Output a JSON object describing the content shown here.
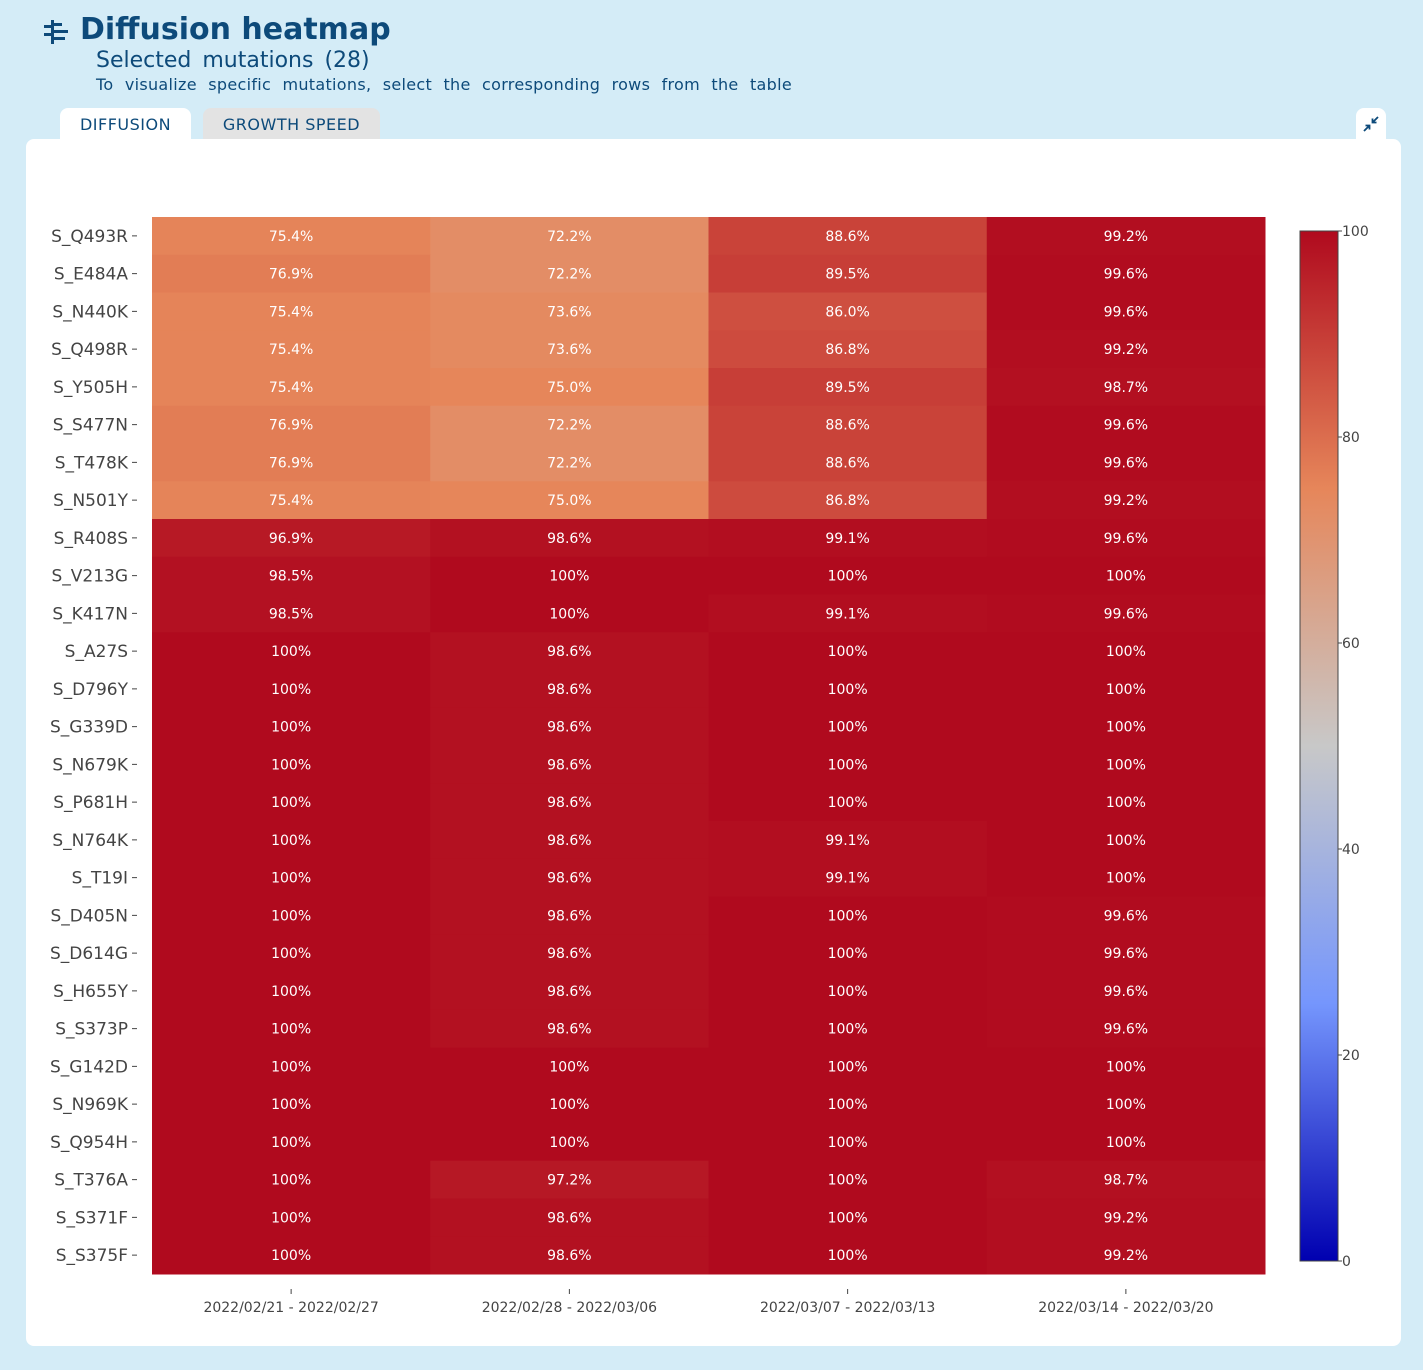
{
  "header": {
    "icon": "tree-filter-icon",
    "title": "Diffusion heatmap",
    "subtitle": "Selected mutations (28)",
    "hint": "To visualize specific mutations, select the corresponding rows from the table"
  },
  "tabs": [
    {
      "label": "DIFFUSION",
      "active": true
    },
    {
      "label": "GROWTH SPEED",
      "active": false
    }
  ],
  "collapse_icon": "collapse-icon",
  "colors": {
    "background": "#d4ecf7",
    "accent": "#0d4a7a",
    "colorscale": [
      "#0000b0",
      "#7596fd",
      "#c8c8c8",
      "#e6865a",
      "#b00a1e"
    ]
  },
  "chart_data": {
    "type": "heatmap",
    "x": [
      "2022/02/21 - 2022/02/27",
      "2022/02/28 - 2022/03/06",
      "2022/03/07 - 2022/03/13",
      "2022/03/14 - 2022/03/20"
    ],
    "y": [
      "S_Q493R",
      "S_E484A",
      "S_N440K",
      "S_Q498R",
      "S_Y505H",
      "S_S477N",
      "S_T478K",
      "S_N501Y",
      "S_R408S",
      "S_V213G",
      "S_K417N",
      "S_A27S",
      "S_D796Y",
      "S_G339D",
      "S_N679K",
      "S_P681H",
      "S_N764K",
      "S_T19I",
      "S_D405N",
      "S_D614G",
      "S_H655Y",
      "S_S373P",
      "S_G142D",
      "S_N969K",
      "S_Q954H",
      "S_T376A",
      "S_S371F",
      "S_S375F"
    ],
    "z": [
      [
        75.4,
        72.2,
        88.6,
        99.2
      ],
      [
        76.9,
        72.2,
        89.5,
        99.6
      ],
      [
        75.4,
        73.6,
        86.0,
        99.6
      ],
      [
        75.4,
        73.6,
        86.8,
        99.2
      ],
      [
        75.4,
        75.0,
        89.5,
        98.7
      ],
      [
        76.9,
        72.2,
        88.6,
        99.6
      ],
      [
        76.9,
        72.2,
        88.6,
        99.6
      ],
      [
        75.4,
        75.0,
        86.8,
        99.2
      ],
      [
        96.9,
        98.6,
        99.1,
        99.6
      ],
      [
        98.5,
        100,
        100,
        100
      ],
      [
        98.5,
        100,
        99.1,
        99.6
      ],
      [
        100,
        98.6,
        100,
        100
      ],
      [
        100,
        98.6,
        100,
        100
      ],
      [
        100,
        98.6,
        100,
        100
      ],
      [
        100,
        98.6,
        100,
        100
      ],
      [
        100,
        98.6,
        100,
        100
      ],
      [
        100,
        98.6,
        99.1,
        100
      ],
      [
        100,
        98.6,
        99.1,
        100
      ],
      [
        100,
        98.6,
        100,
        99.6
      ],
      [
        100,
        98.6,
        100,
        99.6
      ],
      [
        100,
        98.6,
        100,
        99.6
      ],
      [
        100,
        98.6,
        100,
        99.6
      ],
      [
        100,
        100,
        100,
        100
      ],
      [
        100,
        100,
        100,
        100
      ],
      [
        100,
        100,
        100,
        100
      ],
      [
        100,
        97.2,
        100,
        98.7
      ],
      [
        100,
        98.6,
        100,
        99.2
      ],
      [
        100,
        98.6,
        100,
        99.2
      ]
    ],
    "text": [
      [
        "75.4%",
        "72.2%",
        "88.6%",
        "99.2%"
      ],
      [
        "76.9%",
        "72.2%",
        "89.5%",
        "99.6%"
      ],
      [
        "75.4%",
        "73.6%",
        "86.0%",
        "99.6%"
      ],
      [
        "75.4%",
        "73.6%",
        "86.8%",
        "99.2%"
      ],
      [
        "75.4%",
        "75.0%",
        "89.5%",
        "98.7%"
      ],
      [
        "76.9%",
        "72.2%",
        "88.6%",
        "99.6%"
      ],
      [
        "76.9%",
        "72.2%",
        "88.6%",
        "99.6%"
      ],
      [
        "75.4%",
        "75.0%",
        "86.8%",
        "99.2%"
      ],
      [
        "96.9%",
        "98.6%",
        "99.1%",
        "99.6%"
      ],
      [
        "98.5%",
        "100%",
        "100%",
        "100%"
      ],
      [
        "98.5%",
        "100%",
        "99.1%",
        "99.6%"
      ],
      [
        "100%",
        "98.6%",
        "100%",
        "100%"
      ],
      [
        "100%",
        "98.6%",
        "100%",
        "100%"
      ],
      [
        "100%",
        "98.6%",
        "100%",
        "100%"
      ],
      [
        "100%",
        "98.6%",
        "100%",
        "100%"
      ],
      [
        "100%",
        "98.6%",
        "100%",
        "100%"
      ],
      [
        "100%",
        "98.6%",
        "99.1%",
        "100%"
      ],
      [
        "100%",
        "98.6%",
        "99.1%",
        "100%"
      ],
      [
        "100%",
        "98.6%",
        "100%",
        "99.6%"
      ],
      [
        "100%",
        "98.6%",
        "100%",
        "99.6%"
      ],
      [
        "100%",
        "98.6%",
        "100%",
        "99.6%"
      ],
      [
        "100%",
        "98.6%",
        "100%",
        "99.6%"
      ],
      [
        "100%",
        "100%",
        "100%",
        "100%"
      ],
      [
        "100%",
        "100%",
        "100%",
        "100%"
      ],
      [
        "100%",
        "100%",
        "100%",
        "100%"
      ],
      [
        "100%",
        "97.2%",
        "100%",
        "98.7%"
      ],
      [
        "100%",
        "98.6%",
        "100%",
        "99.2%"
      ],
      [
        "100%",
        "98.6%",
        "100%",
        "99.2%"
      ]
    ],
    "zmin": 0,
    "zmax": 100,
    "colorbar": {
      "ticks": [
        0,
        20,
        40,
        60,
        80,
        100
      ],
      "tick_labels": [
        "0",
        "20",
        "40",
        "60",
        "80",
        "100"
      ],
      "placement": "right"
    },
    "title": "",
    "xlabel": "",
    "ylabel": "",
    "grid": false
  }
}
